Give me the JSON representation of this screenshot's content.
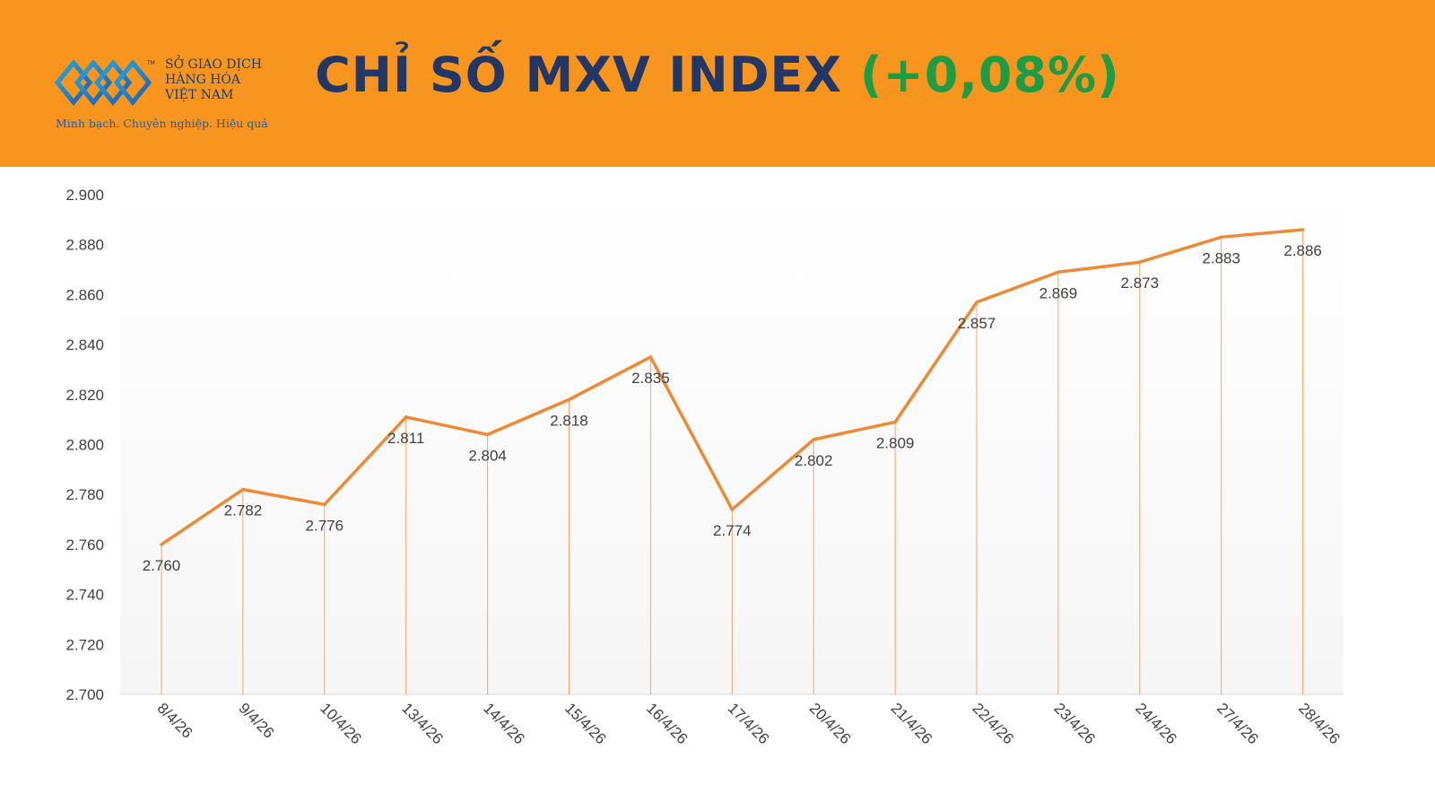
{
  "header": {
    "title": "CHỈ SỐ MXV INDEX",
    "change": "(+0,08%)",
    "background": "#f7951e",
    "title_color": "#223766",
    "change_color": "#1e9b45"
  },
  "logo": {
    "tm": "TM",
    "line1": "SỞ GIAO DỊCH",
    "line2": "HÀNG HÓA",
    "line3": "VIỆT NAM",
    "slogan": "Minh bạch. Chuyên nghiệp. Hiệu quả",
    "icon": "mxv-logo-icon"
  },
  "chart_data": {
    "type": "line",
    "title": "CHỈ SỐ MXV INDEX (+0,08%)",
    "xlabel": "",
    "ylabel": "",
    "categories": [
      "8/4/26",
      "9/4/26",
      "10/4/26",
      "13/4/26",
      "14/4/26",
      "15/4/26",
      "16/4/26",
      "17/4/26",
      "20/4/26",
      "21/4/26",
      "22/4/26",
      "23/4/26",
      "24/4/26",
      "27/4/26",
      "28/4/26"
    ],
    "values": [
      2760,
      2782,
      2776,
      2811,
      2804,
      2818,
      2835,
      2774,
      2802,
      2809,
      2857,
      2869,
      2873,
      2883,
      2886
    ],
    "value_labels": [
      "2.760",
      "2.782",
      "2.776",
      "2.811",
      "2.804",
      "2.818",
      "2.835",
      "2.774",
      "2.802",
      "2.809",
      "2.857",
      "2.869",
      "2.873",
      "2.883",
      "2.886"
    ],
    "ylim": [
      2700,
      2900
    ],
    "yticks": [
      2700,
      2720,
      2740,
      2760,
      2780,
      2800,
      2820,
      2840,
      2860,
      2880,
      2900
    ],
    "ytick_labels": [
      "2.700",
      "2.720",
      "2.740",
      "2.760",
      "2.780",
      "2.800",
      "2.820",
      "2.840",
      "2.860",
      "2.880",
      "2.900"
    ],
    "grid": false,
    "drop_lines": true,
    "line_color": "#ee8a36",
    "drop_line_color": "#f3a56a",
    "plot_background": "#f6f6f6",
    "text_color": "#404040"
  }
}
